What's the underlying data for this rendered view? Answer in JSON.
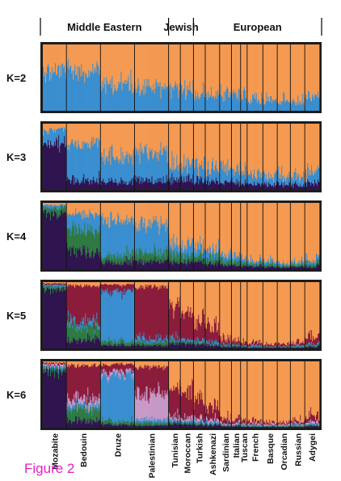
{
  "figure_label": "Figure 2",
  "chart_data": {
    "type": "bar",
    "subtype": "stacked-admixture",
    "region_headers": [
      {
        "label": "Middle Eastern",
        "from": 0,
        "to": 4
      },
      {
        "label": "Jewish",
        "from": 4,
        "to": 6
      },
      {
        "label": "European",
        "from": 6,
        "to": 15
      }
    ],
    "populations": [
      "Mozabite",
      "Bedouin",
      "Druze",
      "Palestinian",
      "Tunisian",
      "Moroccan",
      "Turkish",
      "Ashkenazi",
      "Sardinian",
      "Italian",
      "Tuscan",
      "French",
      "Basque",
      "Orcadian",
      "Russian",
      "Adygei"
    ],
    "population_widths": [
      0.09,
      0.13,
      0.13,
      0.13,
      0.045,
      0.05,
      0.045,
      0.055,
      0.045,
      0.035,
      0.025,
      0.06,
      0.055,
      0.05,
      0.055,
      0.055
    ],
    "cluster_colors": {
      "orange": "#f49a52",
      "blue": "#3a8fd0",
      "dark_purple": "#311550",
      "green": "#2e7a42",
      "crimson": "#8c1c3c",
      "pink": "#c89ac8"
    },
    "panels": [
      {
        "label": "K=2",
        "components": [
          "blue",
          "orange"
        ],
        "mean_proportions": [
          [
            0.58,
            0.42
          ],
          [
            0.62,
            0.38
          ],
          [
            0.4,
            0.6
          ],
          [
            0.36,
            0.64
          ],
          [
            0.32,
            0.68
          ],
          [
            0.3,
            0.7
          ],
          [
            0.26,
            0.74
          ],
          [
            0.24,
            0.76
          ],
          [
            0.24,
            0.76
          ],
          [
            0.2,
            0.8
          ],
          [
            0.19,
            0.81
          ],
          [
            0.17,
            0.83
          ],
          [
            0.15,
            0.85
          ],
          [
            0.14,
            0.86
          ],
          [
            0.13,
            0.87
          ],
          [
            0.18,
            0.82
          ]
        ]
      },
      {
        "label": "K=3",
        "components": [
          "dark_purple",
          "blue",
          "orange"
        ],
        "mean_proportions": [
          [
            0.7,
            0.2,
            0.1
          ],
          [
            0.15,
            0.55,
            0.3
          ],
          [
            0.12,
            0.38,
            0.5
          ],
          [
            0.14,
            0.4,
            0.46
          ],
          [
            0.16,
            0.24,
            0.6
          ],
          [
            0.15,
            0.23,
            0.62
          ],
          [
            0.14,
            0.22,
            0.64
          ],
          [
            0.13,
            0.21,
            0.66
          ],
          [
            0.12,
            0.2,
            0.68
          ],
          [
            0.11,
            0.18,
            0.71
          ],
          [
            0.1,
            0.17,
            0.73
          ],
          [
            0.09,
            0.15,
            0.76
          ],
          [
            0.08,
            0.14,
            0.78
          ],
          [
            0.07,
            0.13,
            0.8
          ],
          [
            0.07,
            0.12,
            0.81
          ],
          [
            0.09,
            0.16,
            0.75
          ]
        ]
      },
      {
        "label": "K=4",
        "components": [
          "dark_purple",
          "green",
          "blue",
          "orange"
        ],
        "mean_proportions": [
          [
            0.85,
            0.08,
            0.04,
            0.03
          ],
          [
            0.28,
            0.32,
            0.24,
            0.16
          ],
          [
            0.1,
            0.1,
            0.55,
            0.25
          ],
          [
            0.12,
            0.14,
            0.42,
            0.32
          ],
          [
            0.1,
            0.12,
            0.18,
            0.6
          ],
          [
            0.1,
            0.11,
            0.16,
            0.63
          ],
          [
            0.09,
            0.1,
            0.14,
            0.67
          ],
          [
            0.08,
            0.09,
            0.12,
            0.71
          ],
          [
            0.06,
            0.07,
            0.09,
            0.78
          ],
          [
            0.05,
            0.06,
            0.08,
            0.81
          ],
          [
            0.05,
            0.05,
            0.07,
            0.83
          ],
          [
            0.04,
            0.04,
            0.05,
            0.87
          ],
          [
            0.03,
            0.04,
            0.05,
            0.88
          ],
          [
            0.03,
            0.03,
            0.04,
            0.9
          ],
          [
            0.03,
            0.03,
            0.04,
            0.9
          ],
          [
            0.04,
            0.05,
            0.07,
            0.84
          ]
        ]
      },
      {
        "label": "K=5",
        "components": [
          "dark_purple",
          "green",
          "blue",
          "crimson",
          "orange"
        ],
        "mean_proportions": [
          [
            0.88,
            0.05,
            0.03,
            0.02,
            0.02
          ],
          [
            0.12,
            0.2,
            0.08,
            0.55,
            0.05
          ],
          [
            0.05,
            0.06,
            0.75,
            0.1,
            0.04
          ],
          [
            0.04,
            0.05,
            0.06,
            0.78,
            0.07
          ],
          [
            0.08,
            0.04,
            0.05,
            0.45,
            0.38
          ],
          [
            0.07,
            0.03,
            0.04,
            0.4,
            0.46
          ],
          [
            0.05,
            0.03,
            0.04,
            0.28,
            0.6
          ],
          [
            0.04,
            0.02,
            0.03,
            0.22,
            0.69
          ],
          [
            0.02,
            0.02,
            0.02,
            0.08,
            0.86
          ],
          [
            0.02,
            0.02,
            0.02,
            0.06,
            0.88
          ],
          [
            0.02,
            0.01,
            0.02,
            0.05,
            0.9
          ],
          [
            0.01,
            0.01,
            0.02,
            0.04,
            0.92
          ],
          [
            0.01,
            0.01,
            0.01,
            0.03,
            0.94
          ],
          [
            0.01,
            0.01,
            0.01,
            0.03,
            0.94
          ],
          [
            0.01,
            0.01,
            0.02,
            0.04,
            0.92
          ],
          [
            0.02,
            0.02,
            0.02,
            0.1,
            0.84
          ]
        ]
      },
      {
        "label": "K=6",
        "components": [
          "dark_purple",
          "green",
          "blue",
          "pink",
          "crimson",
          "orange"
        ],
        "mean_proportions": [
          [
            0.85,
            0.05,
            0.03,
            0.03,
            0.02,
            0.02
          ],
          [
            0.1,
            0.18,
            0.06,
            0.1,
            0.5,
            0.06
          ],
          [
            0.04,
            0.05,
            0.72,
            0.06,
            0.09,
            0.04
          ],
          [
            0.03,
            0.04,
            0.05,
            0.4,
            0.4,
            0.08
          ],
          [
            0.06,
            0.03,
            0.04,
            0.05,
            0.42,
            0.4
          ],
          [
            0.05,
            0.03,
            0.03,
            0.05,
            0.38,
            0.46
          ],
          [
            0.04,
            0.02,
            0.03,
            0.04,
            0.27,
            0.6
          ],
          [
            0.03,
            0.02,
            0.03,
            0.04,
            0.2,
            0.68
          ],
          [
            0.02,
            0.01,
            0.02,
            0.02,
            0.07,
            0.86
          ],
          [
            0.02,
            0.01,
            0.02,
            0.02,
            0.05,
            0.88
          ],
          [
            0.01,
            0.01,
            0.02,
            0.02,
            0.05,
            0.89
          ],
          [
            0.01,
            0.01,
            0.02,
            0.02,
            0.04,
            0.9
          ],
          [
            0.01,
            0.01,
            0.01,
            0.02,
            0.03,
            0.92
          ],
          [
            0.01,
            0.01,
            0.01,
            0.02,
            0.03,
            0.92
          ],
          [
            0.01,
            0.01,
            0.02,
            0.02,
            0.04,
            0.9
          ],
          [
            0.02,
            0.01,
            0.02,
            0.03,
            0.09,
            0.83
          ]
        ]
      }
    ]
  }
}
